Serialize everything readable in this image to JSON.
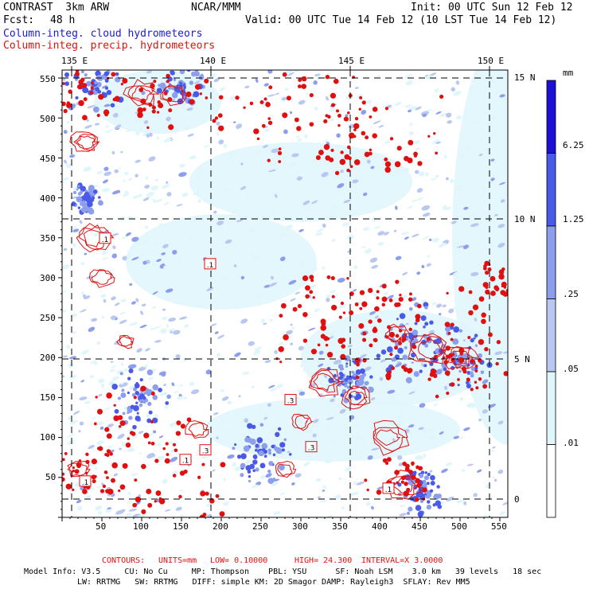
{
  "header": {
    "left_line1": "CONTRAST  3km ARW",
    "center_line1": "NCAR/MMM",
    "init": "Init: 00 UTC Sun 12 Feb 12",
    "fcst_label": "Fcst:",
    "fcst_value": "48 h",
    "valid": "Valid: 00 UTC Tue 14 Feb 12 (10 LST Tue 14 Feb 12)",
    "legend_cloud": "Column-integ. cloud hydrometeors",
    "legend_precip": "Column-integ. precip. hydrometeors"
  },
  "colors": {
    "cloud": "#1a1ad6",
    "precip": "#e01010",
    "shade": [
      "#ffffff",
      "#dff6fb",
      "#b8c8f0",
      "#8c9eec",
      "#4a5ae8",
      "#1a10d6"
    ]
  },
  "chart_data": {
    "type": "heatmap",
    "title": "Column-integrated cloud and precipitation hydrometeors",
    "x_grid_ticks": [
      "50",
      "100",
      "150",
      "200",
      "250",
      "300",
      "350",
      "400",
      "450",
      "500",
      "550"
    ],
    "y_grid_ticks": [
      "50",
      "100",
      "150",
      "200",
      "250",
      "300",
      "350",
      "400",
      "450",
      "500",
      "550"
    ],
    "xlim": [
      0,
      560
    ],
    "ylim": [
      0,
      560
    ],
    "lon_labels": [
      "135 E",
      "140 E",
      "145 E",
      "150 E"
    ],
    "lat_labels": [
      "15 N",
      "10 N",
      "5 N",
      "0"
    ],
    "colorbar_unit": "mm",
    "colorbar_levels": [
      "6.25",
      "1.25",
      ".25",
      ".05",
      ".01"
    ],
    "contour_labels": [
      ".1",
      ".1",
      ".1",
      ".1",
      ".3",
      ".3",
      ".3",
      ".1"
    ],
    "contour_info": {
      "label": "CONTOURS:",
      "units": "UNITS=mm",
      "low": "LOW= 0.10000",
      "high": "HIGH= 24.300",
      "interval": "INTERVAL=X 3.0000"
    }
  },
  "footer": {
    "line1": "Model Info: V3.5     CU: No Cu     MP: Thompson    PBL: YSU      SF: Noah LSM    3.0 km   39 levels   18 sec",
    "line2": "LW: RRTMG   SW: RRTMG   DIFF: simple KM: 2D Smagor DAMP: Rayleigh3  SFLAY: Rev MM5"
  }
}
